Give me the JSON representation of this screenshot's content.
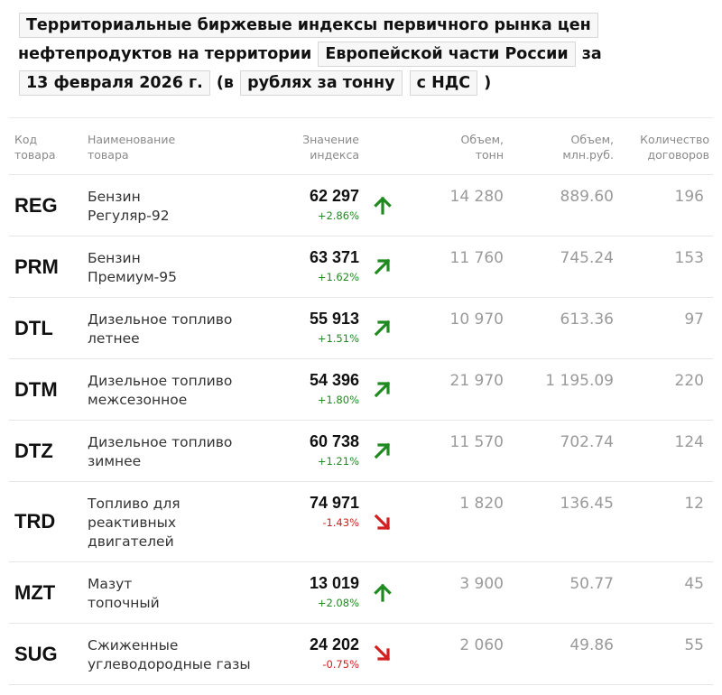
{
  "title": {
    "line1": "Территориальные биржевые индексы первичного рынка цен",
    "line2_text": "нефтепродуктов на территории",
    "region": "Европейской части России",
    "za": "за",
    "date": "13 февраля 2026 г.",
    "open_paren": "(в",
    "currency": "рублях за тонну",
    "vat": "с НДС",
    "close_paren": ")"
  },
  "columns": {
    "code_1": "Код",
    "code_2": "товара",
    "name_1": "Наименование",
    "name_2": "товара",
    "value_1": "Значение",
    "value_2": "индекса",
    "vol_1": "Объем,",
    "vol_2": "тонн",
    "mln_1": "Объем,",
    "mln_2": "млн.руб.",
    "cnt_1": "Количество",
    "cnt_2": "договоров"
  },
  "rows": [
    {
      "code": "REG",
      "name": [
        "Бензин",
        "Регуляр-92"
      ],
      "value": "62 297",
      "change": "+2.86%",
      "trend": "up",
      "volume": "14 280",
      "mln": "889.60",
      "count": "196"
    },
    {
      "code": "PRM",
      "name": [
        "Бензин",
        "Премиум-95"
      ],
      "value": "63 371",
      "change": "+1.62%",
      "trend": "up-right",
      "volume": "11 760",
      "mln": "745.24",
      "count": "153"
    },
    {
      "code": "DTL",
      "name": [
        "Дизельное топливо",
        "летнее"
      ],
      "value": "55 913",
      "change": "+1.51%",
      "trend": "up-right",
      "volume": "10 970",
      "mln": "613.36",
      "count": "97"
    },
    {
      "code": "DTM",
      "name": [
        "Дизельное топливо",
        "межсезонное"
      ],
      "value": "54 396",
      "change": "+1.80%",
      "trend": "up-right",
      "volume": "21 970",
      "mln": "1 195.09",
      "count": "220"
    },
    {
      "code": "DTZ",
      "name": [
        "Дизельное топливо",
        "зимнее"
      ],
      "value": "60 738",
      "change": "+1.21%",
      "trend": "up-right",
      "volume": "11 570",
      "mln": "702.74",
      "count": "124"
    },
    {
      "code": "TRD",
      "name": [
        "Топливо для",
        "реактивных",
        "двигателей"
      ],
      "value": "74 971",
      "change": "-1.43%",
      "trend": "down-right",
      "volume": "1 820",
      "mln": "136.45",
      "count": "12"
    },
    {
      "code": "MZT",
      "name": [
        "Мазут",
        "топочный"
      ],
      "value": "13 019",
      "change": "+2.08%",
      "trend": "up",
      "volume": "3 900",
      "mln": "50.77",
      "count": "45"
    },
    {
      "code": "SUG",
      "name": [
        "Сжиженные",
        "углеводородные газы"
      ],
      "value": "24 202",
      "change": "-0.75%",
      "trend": "down-right",
      "volume": "2 060",
      "mln": "49.86",
      "count": "55"
    }
  ],
  "colors": {
    "up": "#1f8a1f",
    "down": "#d02020"
  },
  "icons": {
    "up": "arrow-up-icon",
    "up-right": "arrow-up-right-icon",
    "down-right": "arrow-down-right-icon"
  }
}
